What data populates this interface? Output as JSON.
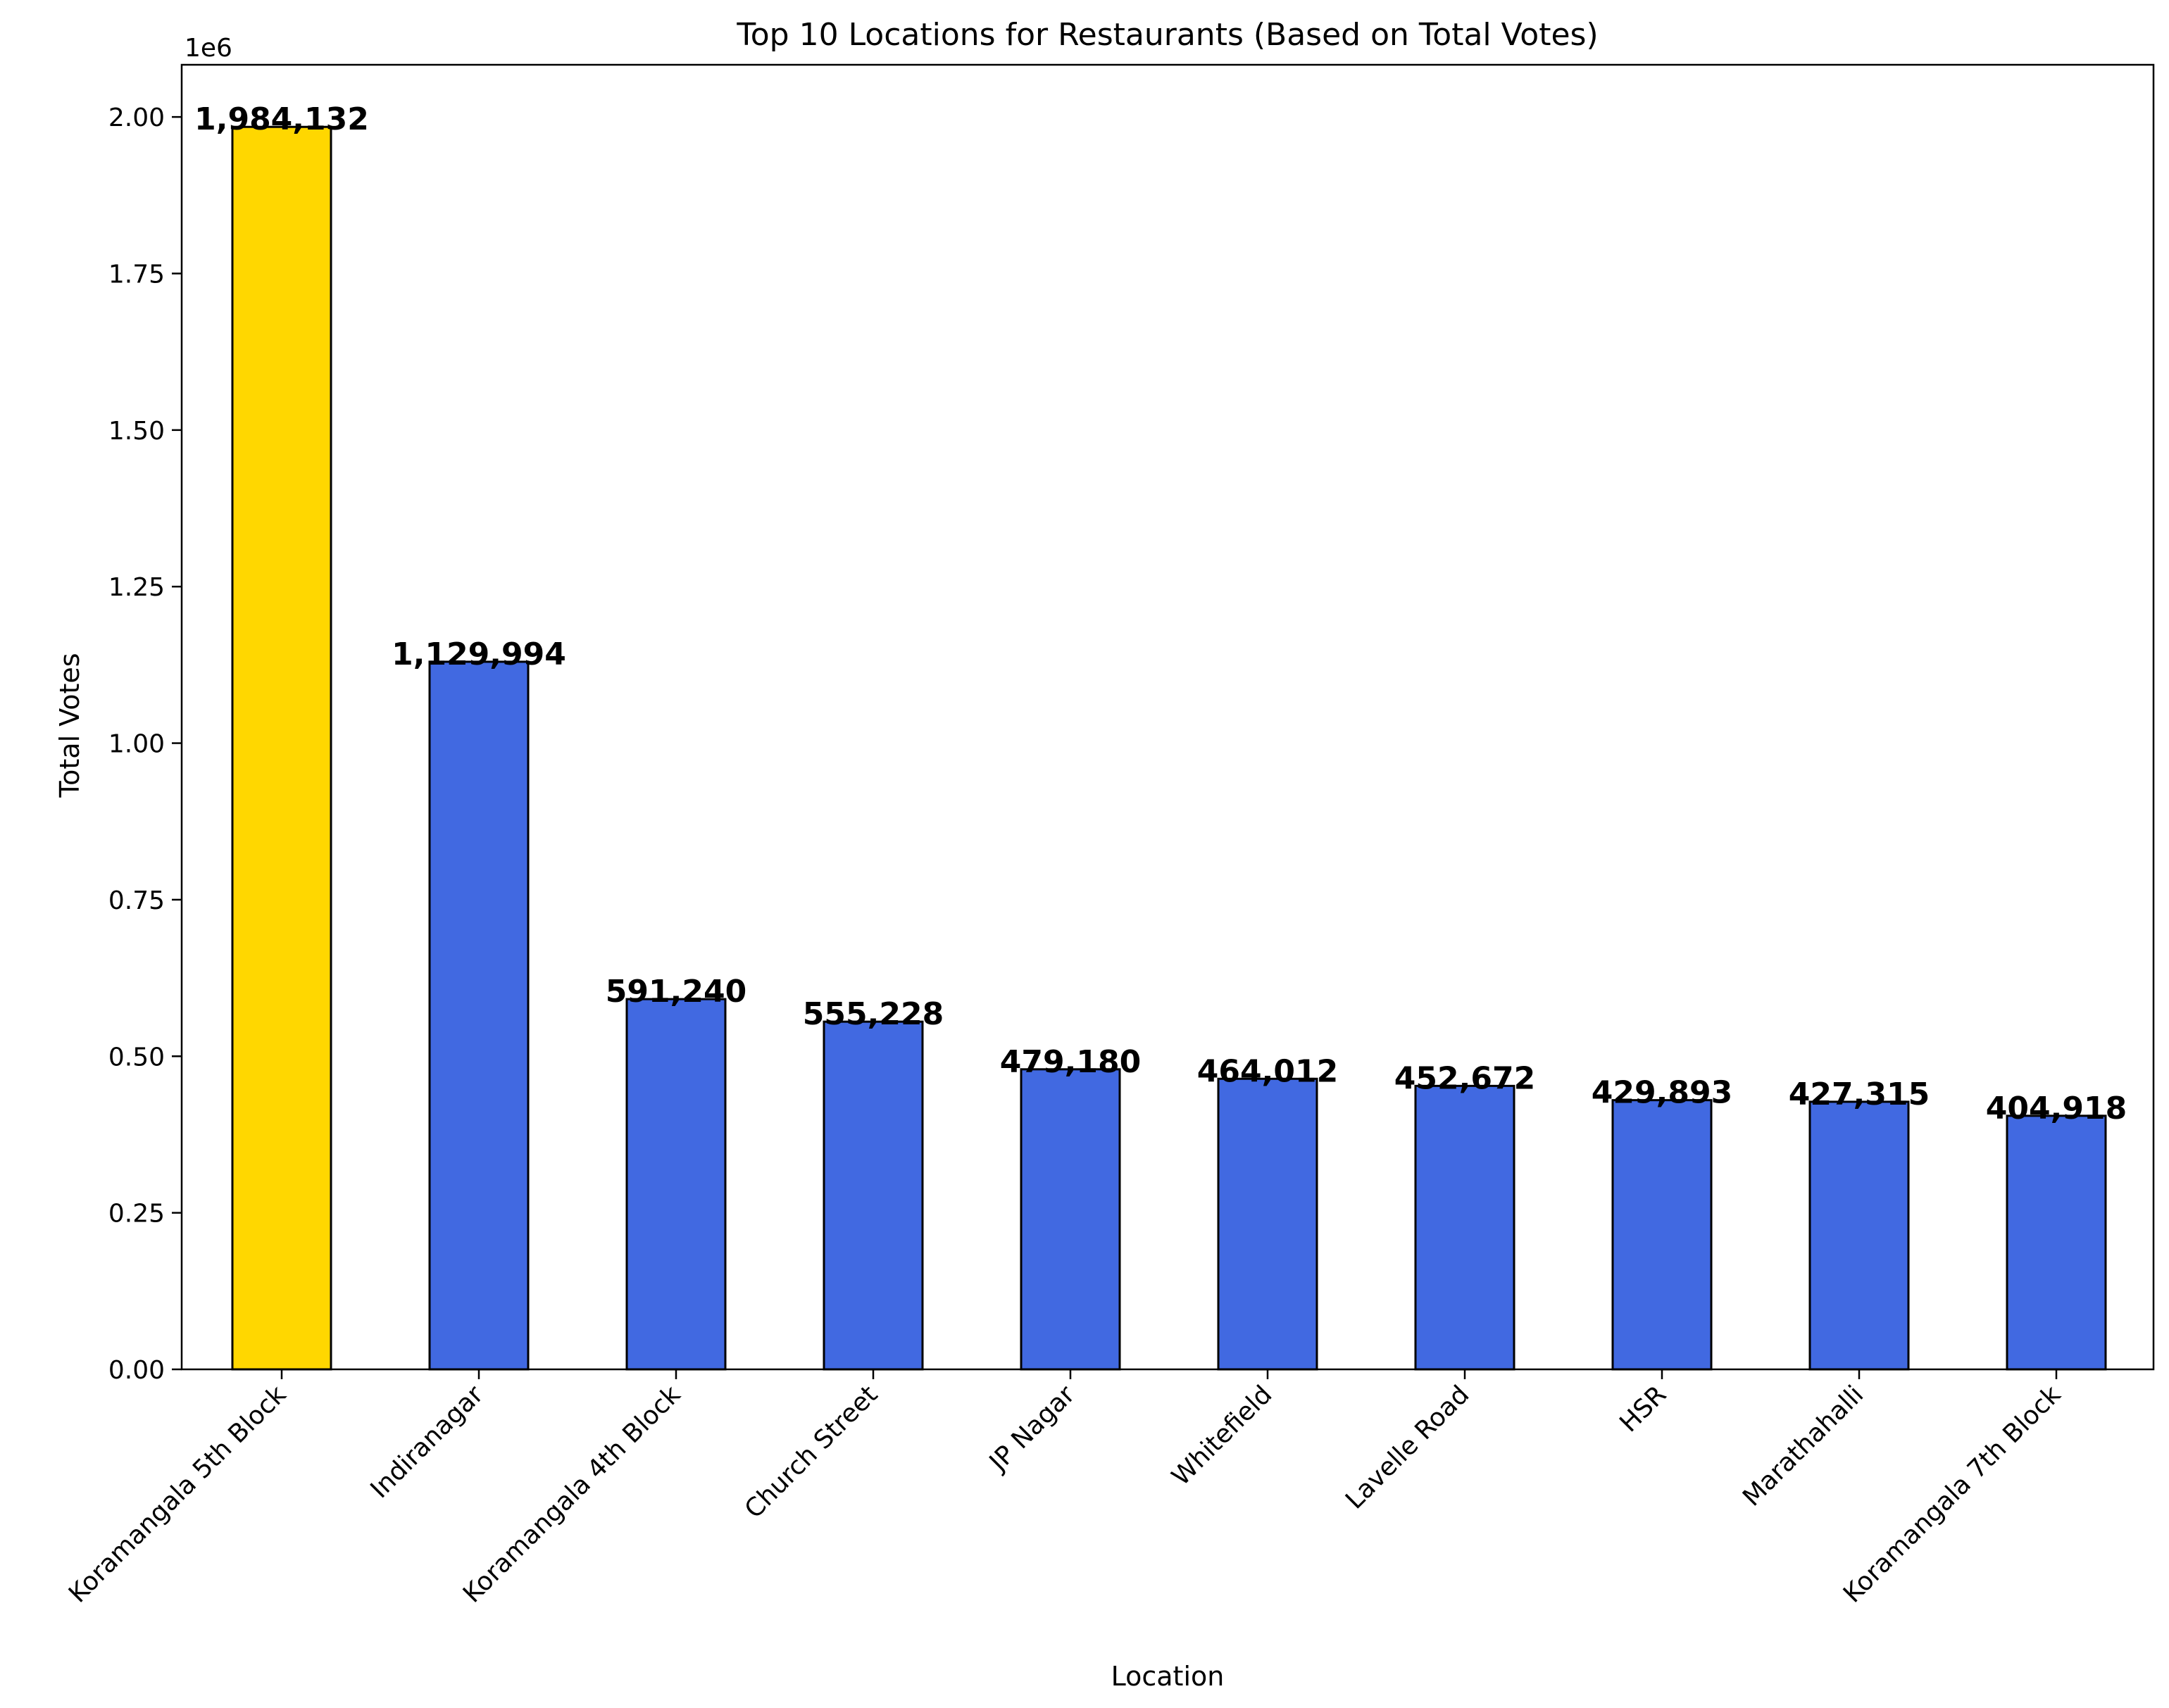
{
  "chart_data": {
    "type": "bar",
    "title": "Top 10 Locations for Restaurants (Based on Total Votes)",
    "xlabel": "Location",
    "ylabel": "Total Votes",
    "y_multiplier_label": "1e6",
    "ylim": [
      0,
      2083339
    ],
    "y_ticks": [
      0,
      250000,
      500000,
      750000,
      1000000,
      1250000,
      1500000,
      1750000,
      2000000
    ],
    "y_tick_labels": [
      "0.00",
      "0.25",
      "0.50",
      "0.75",
      "1.00",
      "1.25",
      "1.50",
      "1.75",
      "2.00"
    ],
    "grid": false,
    "legend": "none",
    "categories": [
      "Koramangala 5th Block",
      "Indiranagar",
      "Koramangala 4th Block",
      "Church Street",
      "JP Nagar",
      "Whitefield",
      "Lavelle Road",
      "HSR",
      "Marathahalli",
      "Koramangala 7th Block"
    ],
    "values": [
      1984132,
      1129994,
      591240,
      555228,
      479180,
      464012,
      452672,
      429893,
      427315,
      404918
    ],
    "value_labels": [
      "1,984,132",
      "1,129,994",
      "591,240",
      "555,228",
      "479,180",
      "464,012",
      "452,672",
      "429,893",
      "427,315",
      "404,918"
    ],
    "colors": {
      "highlight": "#FFD700",
      "default": "#4169E1",
      "edge": "#000000"
    },
    "highlight_index": 0
  }
}
